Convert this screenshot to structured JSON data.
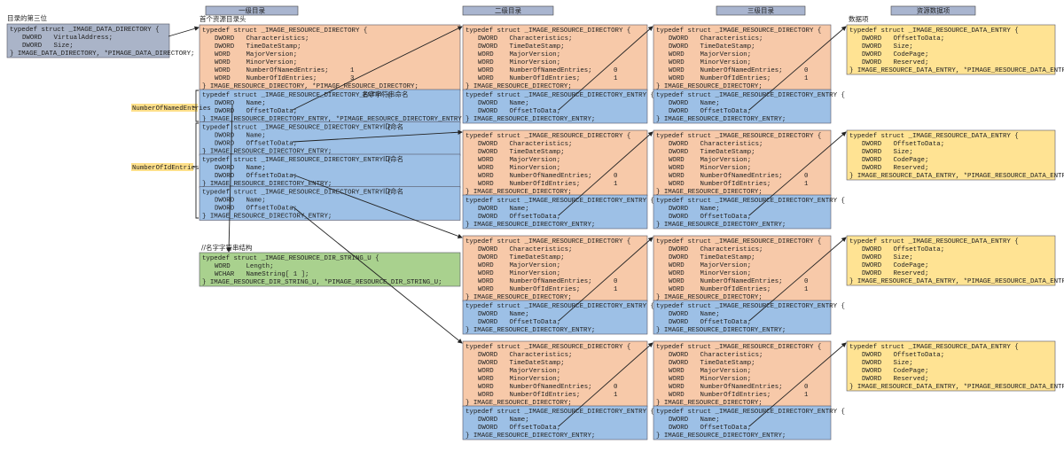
{
  "left": {
    "label": "目录的第三位",
    "lines": [
      "typedef struct _IMAGE_DATA_DIRECTORY {",
      "DWORD   VirtualAddress;",
      "DWORD   Size;",
      "} IMAGE_DATA_DIRECTORY, *PIMAGE_DATA_DIRECTORY;"
    ]
  },
  "headers": [
    "一级目录",
    "二级目录",
    "三级目录",
    "资源数据项"
  ],
  "level1": {
    "label": "首个资源目录头",
    "directory": {
      "lines": [
        "typedef struct _IMAGE_RESOURCE_DIRECTORY {",
        "DWORD   Characteristics;",
        "DWORD   TimeDateStamp;",
        "WORD    MajorVersion;",
        "WORD    MinorVersion;",
        "WORD    NumberOfNamedEntries;",
        "WORD    NumberOfIdEntries;",
        "} IMAGE_RESOURCE_DIRECTORY, *PIMAGE_RESOURCE_DIRECTORY;"
      ],
      "named": 1,
      "ids": 3
    },
    "entries": [
      {
        "note": "名字字符串命名",
        "lines": [
          "typedef struct _IMAGE_RESOURCE_DIRECTORY_ENTRY {",
          "DWORD   Name;",
          "DWORD   OffsetToData;",
          "} IMAGE_RESOURCE_DIRECTORY_ENTRY, *PIMAGE_RESOURCE_DIRECTORY_ENTRY;"
        ]
      },
      {
        "note": "ID命名",
        "lines": [
          "typedef struct _IMAGE_RESOURCE_DIRECTORY_ENTRY {",
          "DWORD   Name;",
          "DWORD   OffsetToData;",
          "} IMAGE_RESOURCE_DIRECTORY_ENTRY;"
        ]
      },
      {
        "note": "ID命名",
        "lines": [
          "typedef struct _IMAGE_RESOURCE_DIRECTORY_ENTRY {",
          "DWORD   Name;",
          "DWORD   OffsetToData;",
          "} IMAGE_RESOURCE_DIRECTORY_ENTRY;"
        ]
      },
      {
        "note": "ID命名",
        "lines": [
          "typedef struct _IMAGE_RESOURCE_DIRECTORY_ENTRY {",
          "DWORD   Name;",
          "DWORD   OffsetToData;",
          "} IMAGE_RESOURCE_DIRECTORY_ENTRY;"
        ]
      }
    ]
  },
  "side_labels": [
    "NumberOfNamedEntries",
    "NumberOfIdEntries"
  ],
  "string_struct": {
    "comment": "//名字字符串结构",
    "lines": [
      "typedef struct _IMAGE_RESOURCE_DIR_STRING_U {",
      "WORD    Length;",
      "WCHAR   NameString[ 1 ];",
      "} IMAGE_RESOURCE_DIR_STRING_U, *PIMAGE_RESOURCE_DIR_STRING_U;"
    ]
  },
  "level2": [
    {
      "directory": {
        "lines": [
          "typedef struct _IMAGE_RESOURCE_DIRECTORY {",
          "DWORD   Characteristics;",
          "DWORD   TimeDateStamp;",
          "WORD    MajorVersion;",
          "WORD    MinorVersion;",
          "WORD    NumberOfNamedEntries;",
          "WORD    NumberOfIdEntries;",
          "} IMAGE_RESOURCE_DIRECTORY;"
        ],
        "named": 0,
        "ids": 1
      },
      "entry": {
        "lines": [
          "typedef struct _IMAGE_RESOURCE_DIRECTORY_ENTRY {",
          "DWORD   Name;",
          "DWORD   OffsetToData;",
          "} IMAGE_RESOURCE_DIRECTORY_ENTRY;"
        ]
      }
    },
    {
      "directory": {
        "lines": [
          "typedef struct _IMAGE_RESOURCE_DIRECTORY {",
          "DWORD   Characteristics;",
          "DWORD   TimeDateStamp;",
          "WORD    MajorVersion;",
          "WORD    MinorVersion;",
          "WORD    NumberOfNamedEntries;",
          "WORD    NumberOfIdEntries;",
          "} IMAGE_RESOURCE_DIRECTORY;"
        ],
        "named": 0,
        "ids": 1
      },
      "entry": {
        "lines": [
          "typedef struct _IMAGE_RESOURCE_DIRECTORY_ENTRY {",
          "DWORD   Name;",
          "DWORD   OffsetToData;",
          "} IMAGE_RESOURCE_DIRECTORY_ENTRY;"
        ]
      }
    },
    {
      "directory": {
        "lines": [
          "typedef struct _IMAGE_RESOURCE_DIRECTORY {",
          "DWORD   Characteristics;",
          "DWORD   TimeDateStamp;",
          "WORD    MajorVersion;",
          "WORD    MinorVersion;",
          "WORD    NumberOfNamedEntries;",
          "WORD    NumberOfIdEntries;",
          "} IMAGE_RESOURCE_DIRECTORY;"
        ],
        "named": 0,
        "ids": 1
      },
      "entry": {
        "lines": [
          "typedef struct _IMAGE_RESOURCE_DIRECTORY_ENTRY {",
          "DWORD   Name;",
          "DWORD   OffsetToData;",
          "} IMAGE_RESOURCE_DIRECTORY_ENTRY;"
        ]
      }
    },
    {
      "directory": {
        "lines": [
          "typedef struct _IMAGE_RESOURCE_DIRECTORY {",
          "DWORD   Characteristics;",
          "DWORD   TimeDateStamp;",
          "WORD    MajorVersion;",
          "WORD    MinorVersion;",
          "WORD    NumberOfNamedEntries;",
          "WORD    NumberOfIdEntries;",
          "} IMAGE_RESOURCE_DIRECTORY;"
        ],
        "named": 0,
        "ids": 1
      },
      "entry": {
        "lines": [
          "typedef struct _IMAGE_RESOURCE_DIRECTORY_ENTRY {",
          "DWORD   Name;",
          "DWORD   OffsetToData;",
          "} IMAGE_RESOURCE_DIRECTORY_ENTRY;"
        ]
      }
    }
  ],
  "level3": [
    {
      "directory": {
        "lines": [
          "typedef struct _IMAGE_RESOURCE_DIRECTORY {",
          "DWORD   Characteristics;",
          "DWORD   TimeDateStamp;",
          "WORD    MajorVersion;",
          "WORD    MinorVersion;",
          "WORD    NumberOfNamedEntries;",
          "WORD    NumberOfIdEntries;",
          "} IMAGE_RESOURCE_DIRECTORY;"
        ],
        "named": 0,
        "ids": 1
      },
      "entry": {
        "lines": [
          "typedef struct _IMAGE_RESOURCE_DIRECTORY_ENTRY {",
          "DWORD   Name;",
          "DWORD   OffsetToData;",
          "} IMAGE_RESOURCE_DIRECTORY_ENTRY;"
        ]
      }
    },
    {
      "directory": {
        "lines": [
          "typedef struct _IMAGE_RESOURCE_DIRECTORY {",
          "DWORD   Characteristics;",
          "DWORD   TimeDateStamp;",
          "WORD    MajorVersion;",
          "WORD    MinorVersion;",
          "WORD    NumberOfNamedEntries;",
          "WORD    NumberOfIdEntries;",
          "} IMAGE_RESOURCE_DIRECTORY;"
        ],
        "named": 0,
        "ids": 1
      },
      "entry": {
        "lines": [
          "typedef struct _IMAGE_RESOURCE_DIRECTORY_ENTRY {",
          "DWORD   Name;",
          "DWORD   OffsetToData;",
          "} IMAGE_RESOURCE_DIRECTORY_ENTRY;"
        ]
      }
    },
    {
      "directory": {
        "lines": [
          "typedef struct _IMAGE_RESOURCE_DIRECTORY {",
          "DWORD   Characteristics;",
          "DWORD   TimeDateStamp;",
          "WORD    MajorVersion;",
          "WORD    MinorVersion;",
          "WORD    NumberOfNamedEntries;",
          "WORD    NumberOfIdEntries;",
          "} IMAGE_RESOURCE_DIRECTORY;"
        ],
        "named": 0,
        "ids": 1
      },
      "entry": {
        "lines": [
          "typedef struct _IMAGE_RESOURCE_DIRECTORY_ENTRY {",
          "DWORD   Name;",
          "DWORD   OffsetToData;",
          "} IMAGE_RESOURCE_DIRECTORY_ENTRY;"
        ]
      }
    },
    {
      "directory": {
        "lines": [
          "typedef struct _IMAGE_RESOURCE_DIRECTORY {",
          "DWORD   Characteristics;",
          "DWORD   TimeDateStamp;",
          "WORD    MajorVersion;",
          "WORD    MinorVersion;",
          "WORD    NumberOfNamedEntries;",
          "WORD    NumberOfIdEntries;",
          "} IMAGE_RESOURCE_DIRECTORY;"
        ],
        "named": 0,
        "ids": 1
      },
      "entry": {
        "lines": [
          "typedef struct _IMAGE_RESOURCE_DIRECTORY_ENTRY {",
          "DWORD   Name;",
          "DWORD   OffsetToData;",
          "} IMAGE_RESOURCE_DIRECTORY_ENTRY;"
        ]
      }
    }
  ],
  "data_label": "数据项",
  "data_entries": [
    {
      "lines": [
        "typedef struct _IMAGE_RESOURCE_DATA_ENTRY {",
        "DWORD   OffsetToData;",
        "DWORD   Size;",
        "DWORD   CodePage;",
        "DWORD   Reserved;",
        "} IMAGE_RESOURCE_DATA_ENTRY, *PIMAGE_RESOURCE_DATA_ENTRY;"
      ]
    },
    {
      "lines": [
        "typedef struct _IMAGE_RESOURCE_DATA_ENTRY {",
        "DWORD   OffsetToData;",
        "DWORD   Size;",
        "DWORD   CodePage;",
        "DWORD   Reserved;",
        "} IMAGE_RESOURCE_DATA_ENTRY, *PIMAGE_RESOURCE_DATA_ENTRY;"
      ]
    },
    {
      "lines": [
        "typedef struct _IMAGE_RESOURCE_DATA_ENTRY {",
        "DWORD   OffsetToData;",
        "DWORD   Size;",
        "DWORD   CodePage;",
        "DWORD   Reserved;",
        "} IMAGE_RESOURCE_DATA_ENTRY, *PIMAGE_RESOURCE_DATA_ENTRY;"
      ]
    },
    {
      "lines": [
        "typedef struct _IMAGE_RESOURCE_DATA_ENTRY {",
        "DWORD   OffsetToData;",
        "DWORD   Size;",
        "DWORD   CodePage;",
        "DWORD   Reserved;",
        "} IMAGE_RESOURCE_DATA_ENTRY, *PIMAGE_RESOURCE_DATA_ENTRY;"
      ]
    }
  ]
}
